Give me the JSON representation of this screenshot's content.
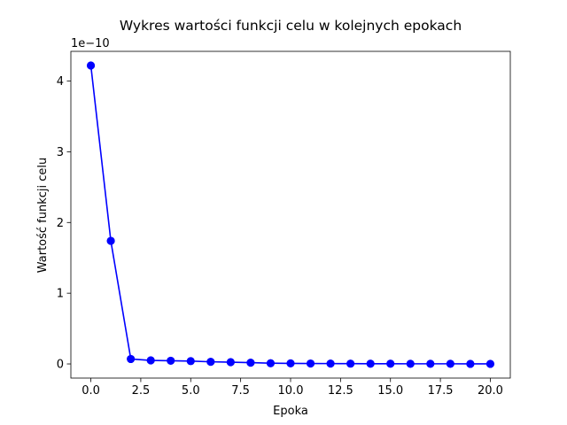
{
  "chart_data": {
    "type": "line",
    "title": "Wykres wartości funkcji celu w kolejnych epokach",
    "xlabel": "Epoka",
    "ylabel": "Wartość funkcji celu",
    "y_offset_label": "1e−10",
    "xlim": [
      -1.0,
      21.0
    ],
    "ylim": [
      -0.2,
      4.42
    ],
    "x_ticks": [
      0.0,
      2.5,
      5.0,
      7.5,
      10.0,
      12.5,
      15.0,
      17.5,
      20.0
    ],
    "x_tick_labels": [
      "0.0",
      "2.5",
      "5.0",
      "7.5",
      "10.0",
      "12.5",
      "15.0",
      "17.5",
      "20.0"
    ],
    "y_ticks": [
      0,
      1,
      2,
      3,
      4
    ],
    "y_tick_labels": [
      "0",
      "1",
      "2",
      "3",
      "4"
    ],
    "grid": false,
    "legend": "none",
    "series": [
      {
        "color": "#0000ff",
        "marker": "circle",
        "x": [
          0,
          1,
          2,
          3,
          4,
          5,
          6,
          7,
          8,
          9,
          10,
          11,
          12,
          13,
          14,
          15,
          16,
          17,
          18,
          19,
          20
        ],
        "y": [
          4.22,
          1.74,
          0.07,
          0.05,
          0.045,
          0.04,
          0.03,
          0.025,
          0.018,
          0.01,
          0.008,
          0.006,
          0.005,
          0.004,
          0.003,
          0.003,
          0.002,
          0.002,
          0.002,
          0.001,
          0.001
        ]
      }
    ]
  }
}
